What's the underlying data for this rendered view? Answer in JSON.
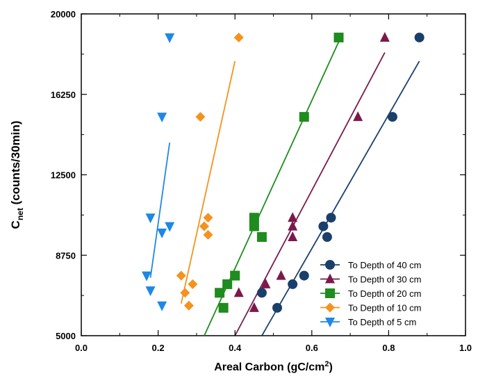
{
  "chart_data": {
    "type": "scatter",
    "xlabel": "Areal Carbon (gC/cm²)",
    "ylabel": "Cnet (counts/30min)",
    "xlim": [
      0.0,
      1.0
    ],
    "ylim": [
      5000,
      20000
    ],
    "xticks": [
      "0.0",
      "0.2",
      "0.4",
      "0.6",
      "0.8",
      "1.0"
    ],
    "yticks": [
      "5000",
      "8750",
      "12500",
      "16250",
      "20000"
    ],
    "grid": false,
    "legend_position": "bottom-right",
    "series": [
      {
        "name": "To Depth of 40 cm",
        "marker": "circle",
        "color": "#1a3f6b",
        "points": [
          [
            0.51,
            6300
          ],
          [
            0.47,
            7000
          ],
          [
            0.55,
            7400
          ],
          [
            0.58,
            7800
          ],
          [
            0.64,
            9600
          ],
          [
            0.63,
            10100
          ],
          [
            0.65,
            10500
          ],
          [
            0.81,
            15200
          ],
          [
            0.88,
            18900
          ]
        ],
        "fit": [
          [
            0.47,
            5000
          ],
          [
            0.88,
            17800
          ]
        ]
      },
      {
        "name": "To Depth of 30 cm",
        "marker": "triangle",
        "color": "#7a1a4a",
        "points": [
          [
            0.45,
            6300
          ],
          [
            0.41,
            7000
          ],
          [
            0.48,
            7400
          ],
          [
            0.52,
            7800
          ],
          [
            0.55,
            9600
          ],
          [
            0.55,
            10100
          ],
          [
            0.55,
            10500
          ],
          [
            0.72,
            15200
          ],
          [
            0.79,
            18900
          ]
        ],
        "fit": [
          [
            0.4,
            5000
          ],
          [
            0.79,
            18200
          ]
        ]
      },
      {
        "name": "To Depth of 20 cm",
        "marker": "square",
        "color": "#1e8c1e",
        "points": [
          [
            0.37,
            6300
          ],
          [
            0.36,
            7000
          ],
          [
            0.38,
            7400
          ],
          [
            0.4,
            7800
          ],
          [
            0.47,
            9600
          ],
          [
            0.45,
            10100
          ],
          [
            0.45,
            10500
          ],
          [
            0.58,
            15200
          ],
          [
            0.67,
            18900
          ]
        ],
        "fit": [
          [
            0.32,
            5000
          ],
          [
            0.67,
            18700
          ]
        ]
      },
      {
        "name": "To Depth of 10 cm",
        "marker": "diamond",
        "color": "#f5921e",
        "points": [
          [
            0.28,
            6400
          ],
          [
            0.27,
            7000
          ],
          [
            0.29,
            7400
          ],
          [
            0.26,
            7800
          ],
          [
            0.33,
            9700
          ],
          [
            0.32,
            10100
          ],
          [
            0.33,
            10500
          ],
          [
            0.31,
            15200
          ],
          [
            0.41,
            18900
          ]
        ],
        "fit": [
          [
            0.26,
            6500
          ],
          [
            0.4,
            17800
          ]
        ]
      },
      {
        "name": "To Depth of 5 cm",
        "marker": "triangle-down",
        "color": "#1e88e5",
        "points": [
          [
            0.21,
            6400
          ],
          [
            0.18,
            7100
          ],
          [
            0.17,
            7800
          ],
          [
            0.21,
            9800
          ],
          [
            0.23,
            10100
          ],
          [
            0.18,
            10500
          ],
          [
            0.21,
            15200
          ],
          [
            0.23,
            18900
          ]
        ],
        "fit": [
          [
            0.18,
            7700
          ],
          [
            0.23,
            14000
          ]
        ]
      }
    ]
  }
}
